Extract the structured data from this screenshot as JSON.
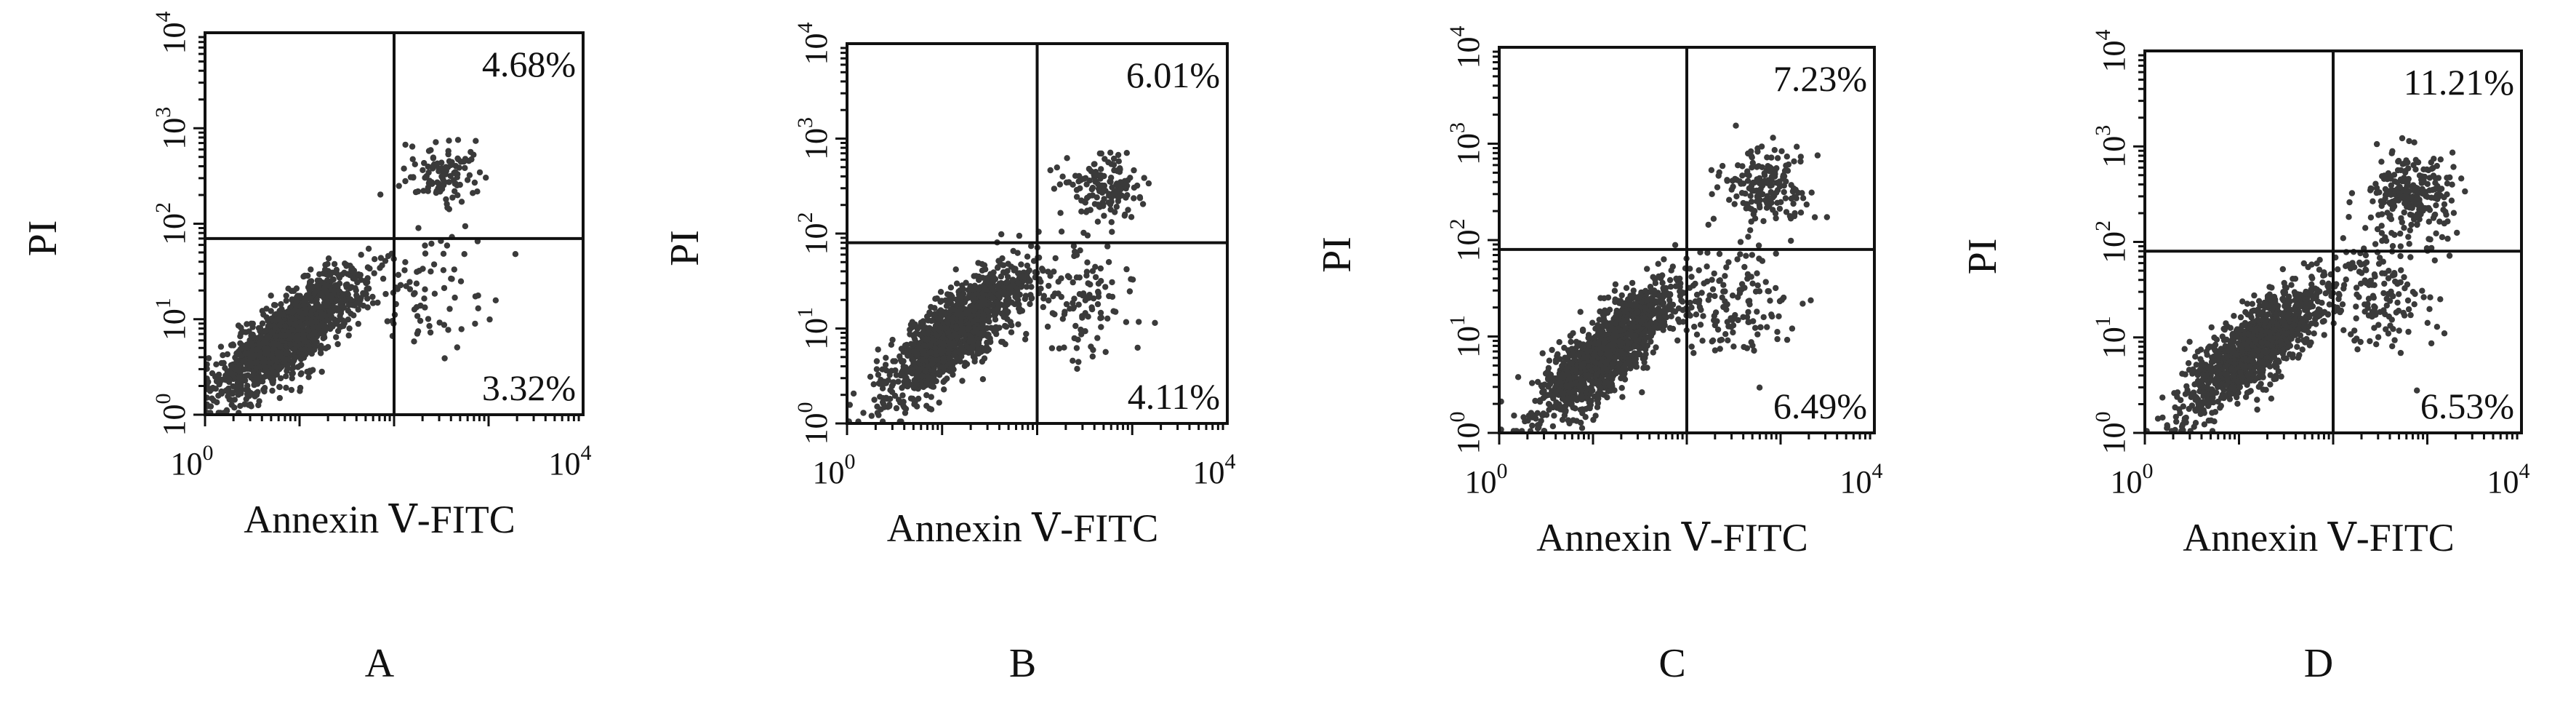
{
  "chart_data": [
    {
      "type": "scatter",
      "panel_label": "A",
      "xlabel": "Annexin Ⅴ-FITC",
      "ylabel": "PI",
      "x_scale": "log",
      "y_scale": "log",
      "xlim": [
        1,
        10000
      ],
      "ylim": [
        1,
        10000
      ],
      "x_ticks": [
        {
          "base": "10",
          "exp": "0"
        },
        {
          "base": "10",
          "exp": "4"
        }
      ],
      "y_ticks": [
        {
          "base": "10",
          "exp": "0"
        },
        {
          "base": "10",
          "exp": "1"
        },
        {
          "base": "10",
          "exp": "2"
        },
        {
          "base": "10",
          "exp": "3"
        },
        {
          "base": "10",
          "exp": "4"
        }
      ],
      "gate_x": 100,
      "gate_y": 70,
      "quadrants": {
        "upper_right": "4.68%",
        "lower_right": "3.32%"
      },
      "populations": [
        {
          "name": "viable",
          "center": [
            8,
            7
          ],
          "spread": [
            0.38,
            0.36
          ],
          "share": 0.88
        },
        {
          "name": "late_apoptotic",
          "center": [
            350,
            330
          ],
          "spread": [
            0.22,
            0.18
          ],
          "share": 0.07
        },
        {
          "name": "early_apoptotic",
          "center": [
            220,
            18
          ],
          "spread": [
            0.3,
            0.3
          ],
          "share": 0.05
        }
      ]
    },
    {
      "type": "scatter",
      "panel_label": "B",
      "xlabel": "Annexin Ⅴ-FITC",
      "ylabel": "PI",
      "x_scale": "log",
      "y_scale": "log",
      "xlim": [
        1,
        10000
      ],
      "ylim": [
        1,
        10000
      ],
      "x_ticks": [
        {
          "base": "10",
          "exp": "0"
        },
        {
          "base": "10",
          "exp": "4"
        }
      ],
      "y_ticks": [
        {
          "base": "10",
          "exp": "0"
        },
        {
          "base": "10",
          "exp": "1"
        },
        {
          "base": "10",
          "exp": "2"
        },
        {
          "base": "10",
          "exp": "3"
        },
        {
          "base": "10",
          "exp": "4"
        }
      ],
      "gate_x": 100,
      "gate_y": 80,
      "quadrants": {
        "upper_right": "6.01%",
        "lower_right": "4.11%"
      },
      "populations": [
        {
          "name": "viable",
          "center": [
            14,
            9
          ],
          "spread": [
            0.36,
            0.38
          ],
          "share": 0.84
        },
        {
          "name": "late_apoptotic",
          "center": [
            500,
            300
          ],
          "spread": [
            0.22,
            0.2
          ],
          "share": 0.09
        },
        {
          "name": "early_apoptotic",
          "center": [
            260,
            20
          ],
          "spread": [
            0.3,
            0.32
          ],
          "share": 0.07
        }
      ]
    },
    {
      "type": "scatter",
      "panel_label": "C",
      "xlabel": "Annexin Ⅴ-FITC",
      "ylabel": "PI",
      "x_scale": "log",
      "y_scale": "log",
      "xlim": [
        1,
        10000
      ],
      "ylim": [
        1,
        10000
      ],
      "x_ticks": [
        {
          "base": "10",
          "exp": "0"
        },
        {
          "base": "10",
          "exp": "4"
        }
      ],
      "y_ticks": [
        {
          "base": "10",
          "exp": "0"
        },
        {
          "base": "10",
          "exp": "1"
        },
        {
          "base": "10",
          "exp": "2"
        },
        {
          "base": "10",
          "exp": "3"
        },
        {
          "base": "10",
          "exp": "4"
        }
      ],
      "gate_x": 100,
      "gate_y": 80,
      "quadrants": {
        "upper_right": "7.23%",
        "lower_right": "6.49%"
      },
      "populations": [
        {
          "name": "viable",
          "center": [
            14,
            7
          ],
          "spread": [
            0.38,
            0.38
          ],
          "share": 0.8
        },
        {
          "name": "late_apoptotic",
          "center": [
            650,
            350
          ],
          "spread": [
            0.25,
            0.2
          ],
          "share": 0.11
        },
        {
          "name": "early_apoptotic",
          "center": [
            300,
            22
          ],
          "spread": [
            0.32,
            0.32
          ],
          "share": 0.09
        }
      ]
    },
    {
      "type": "scatter",
      "panel_label": "D",
      "xlabel": "Annexin Ⅴ-FITC",
      "ylabel": "PI",
      "x_scale": "log",
      "y_scale": "log",
      "xlim": [
        1,
        10000
      ],
      "ylim": [
        1,
        10000
      ],
      "x_ticks": [
        {
          "base": "10",
          "exp": "0"
        },
        {
          "base": "10",
          "exp": "4"
        }
      ],
      "y_ticks": [
        {
          "base": "10",
          "exp": "0"
        },
        {
          "base": "10",
          "exp": "1"
        },
        {
          "base": "10",
          "exp": "2"
        },
        {
          "base": "10",
          "exp": "3"
        },
        {
          "base": "10",
          "exp": "4"
        }
      ],
      "gate_x": 100,
      "gate_y": 80,
      "quadrants": {
        "upper_right": "11.21%",
        "lower_right": "6.53%"
      },
      "populations": [
        {
          "name": "viable",
          "center": [
            15,
            8
          ],
          "spread": [
            0.38,
            0.38
          ],
          "share": 0.76
        },
        {
          "name": "late_apoptotic",
          "center": [
            700,
            300
          ],
          "spread": [
            0.25,
            0.22
          ],
          "share": 0.15
        },
        {
          "name": "early_apoptotic",
          "center": [
            300,
            25
          ],
          "spread": [
            0.32,
            0.32
          ],
          "share": 0.09
        }
      ]
    }
  ]
}
